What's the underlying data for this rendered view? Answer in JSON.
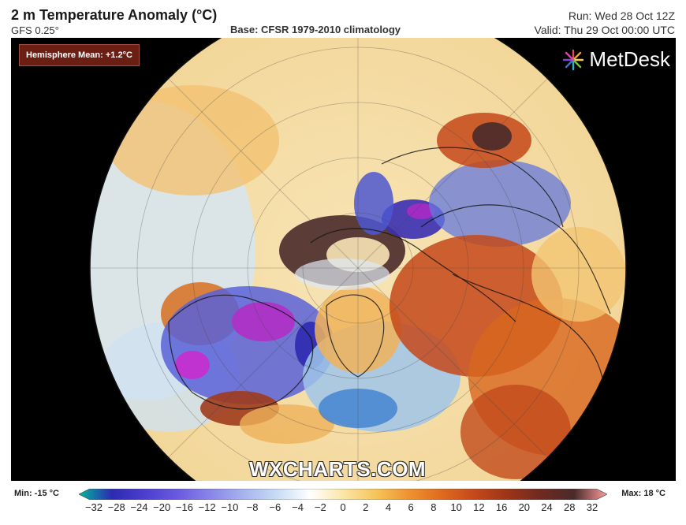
{
  "header": {
    "title": "2 m Temperature Anomaly (°C)",
    "model": "GFS 0.25°",
    "base": "Base: CFSR 1979-2010 climatology",
    "run": "Run: Wed 28 Oct 12Z",
    "valid": "Valid: Thu 29 Oct 00:00 UTC"
  },
  "hemisphere_mean": "Hemisphere Mean: +1.2°C",
  "logo": {
    "text": "MetDesk",
    "icon": "metdesk-burst-icon"
  },
  "watermark": "WXCHARTS.COM",
  "legend": {
    "min_label": "Min: -15 °C",
    "max_label": "Max: 18 °C",
    "ticks": [
      "−32",
      "−28",
      "−24",
      "−20",
      "−16",
      "−12",
      "−10",
      "−8",
      "−6",
      "−4",
      "−2",
      "0",
      "2",
      "4",
      "6",
      "8",
      "10",
      "12",
      "16",
      "20",
      "24",
      "28",
      "32"
    ],
    "colors": [
      "#00b89c",
      "#2d2ab0",
      "#4b3fd0",
      "#6b5ae0",
      "#8a86e8",
      "#a6b4ef",
      "#c8dcf4",
      "#ffffff",
      "#fbe6a8",
      "#f6c45a",
      "#ee9230",
      "#df6a1e",
      "#c4481a",
      "#9c3418",
      "#6e2a20",
      "#4a2a2a",
      "#ff9c9c"
    ]
  }
}
